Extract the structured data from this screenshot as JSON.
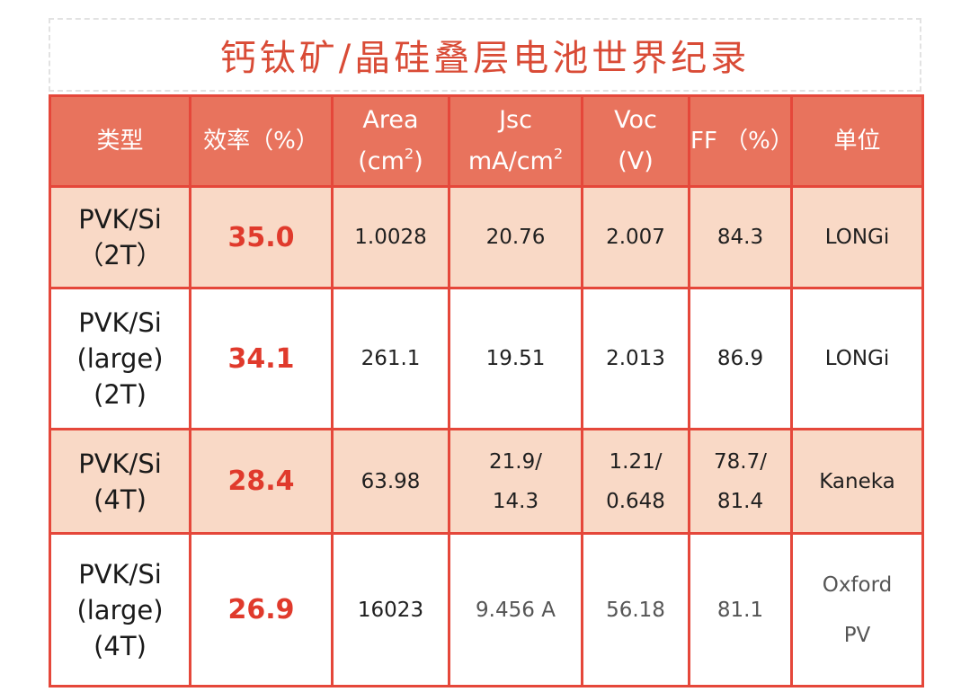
{
  "title": "钙钛矿/晶硅叠层电池世界纪录",
  "headers": {
    "type": "类型",
    "efficiency": "效率（%）",
    "area_line1": "Area",
    "area_line2": "(cm",
    "area_sup": "2",
    "area_close": ")",
    "jsc_line1": "Jsc",
    "jsc_line2": "mA/cm",
    "jsc_sup": "2",
    "voc_line1": "Voc",
    "voc_line2": "(V)",
    "ff": "FF （%）",
    "unit": "单位"
  },
  "rows": [
    {
      "type_lines": [
        "PVK/Si",
        "（2T）"
      ],
      "efficiency": "35.0",
      "area": "1.0028",
      "jsc_lines": [
        "20.76"
      ],
      "voc_lines": [
        "2.007"
      ],
      "ff_lines": [
        "84.3"
      ],
      "unit_lines": [
        "LONGi"
      ]
    },
    {
      "type_lines": [
        "PVK/Si",
        "(large)",
        "(2T)"
      ],
      "efficiency": "34.1",
      "area": "261.1",
      "jsc_lines": [
        "19.51"
      ],
      "voc_lines": [
        "2.013"
      ],
      "ff_lines": [
        "86.9"
      ],
      "unit_lines": [
        "LONGi"
      ]
    },
    {
      "type_lines": [
        "PVK/Si",
        "(4T)"
      ],
      "efficiency": "28.4",
      "area": "63.98",
      "jsc_lines": [
        "21.9/",
        "14.3"
      ],
      "voc_lines": [
        "1.21/",
        "0.648"
      ],
      "ff_lines": [
        "78.7/",
        "81.4"
      ],
      "unit_lines": [
        "Kaneka"
      ]
    },
    {
      "type_lines": [
        "PVK/Si",
        "(large)",
        "(4T)"
      ],
      "efficiency": "26.9",
      "area": "16023",
      "jsc_lines": [
        "9.456 A"
      ],
      "voc_lines": [
        "56.18"
      ],
      "ff_lines": [
        "81.1"
      ],
      "unit_lines": [
        "Oxford",
        "PV"
      ]
    }
  ]
}
